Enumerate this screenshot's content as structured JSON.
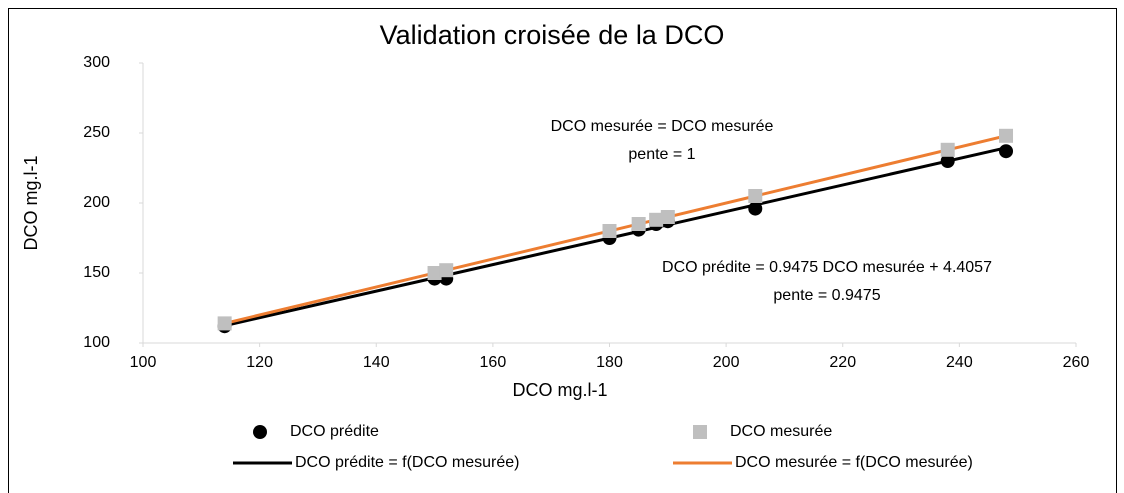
{
  "chart_data": {
    "type": "scatter",
    "title": "Validation croisée de la DCO",
    "x_label": "DCO mg.l-1",
    "y_label": "DCO mg.l-1",
    "annotations": [
      "DCO mesurée = DCO mesurée",
      "pente = 1",
      "DCO prédite = 0.9475 DCO mesurée + 4.4057",
      "pente = 0.9475"
    ],
    "xlim": [
      100,
      260
    ],
    "xticks": [
      100,
      120,
      140,
      160,
      180,
      200,
      220,
      240,
      260
    ],
    "ylim": [
      100,
      300
    ],
    "yticks": [
      100,
      150,
      200,
      250,
      300
    ],
    "grid": false,
    "legend": "bottom",
    "series": [
      {
        "name": "DCO prédite",
        "kind": "points",
        "marker": "circle",
        "color": "#000000",
        "x": [
          114,
          150,
          152,
          180,
          185,
          188,
          190,
          205,
          238,
          248
        ],
        "values": [
          112,
          146,
          146,
          175,
          181,
          185,
          187,
          196,
          230,
          237
        ]
      },
      {
        "name": "DCO mesurée",
        "kind": "points",
        "marker": "square",
        "color": "#bfbfbf",
        "x": [
          114,
          150,
          152,
          180,
          185,
          188,
          190,
          205,
          238,
          248
        ],
        "values": [
          114,
          150,
          152,
          180,
          185,
          188,
          190,
          205,
          238,
          248
        ]
      },
      {
        "name": "DCO prédite = f(DCO mesurée)",
        "kind": "line",
        "color": "#000000",
        "x": [
          114,
          248
        ],
        "values": [
          112.4,
          239.4
        ]
      },
      {
        "name": "DCO mesurée = f(DCO mesurée)",
        "kind": "line",
        "color": "#ed7d31",
        "x": [
          114,
          248
        ],
        "values": [
          114,
          248
        ]
      }
    ]
  }
}
